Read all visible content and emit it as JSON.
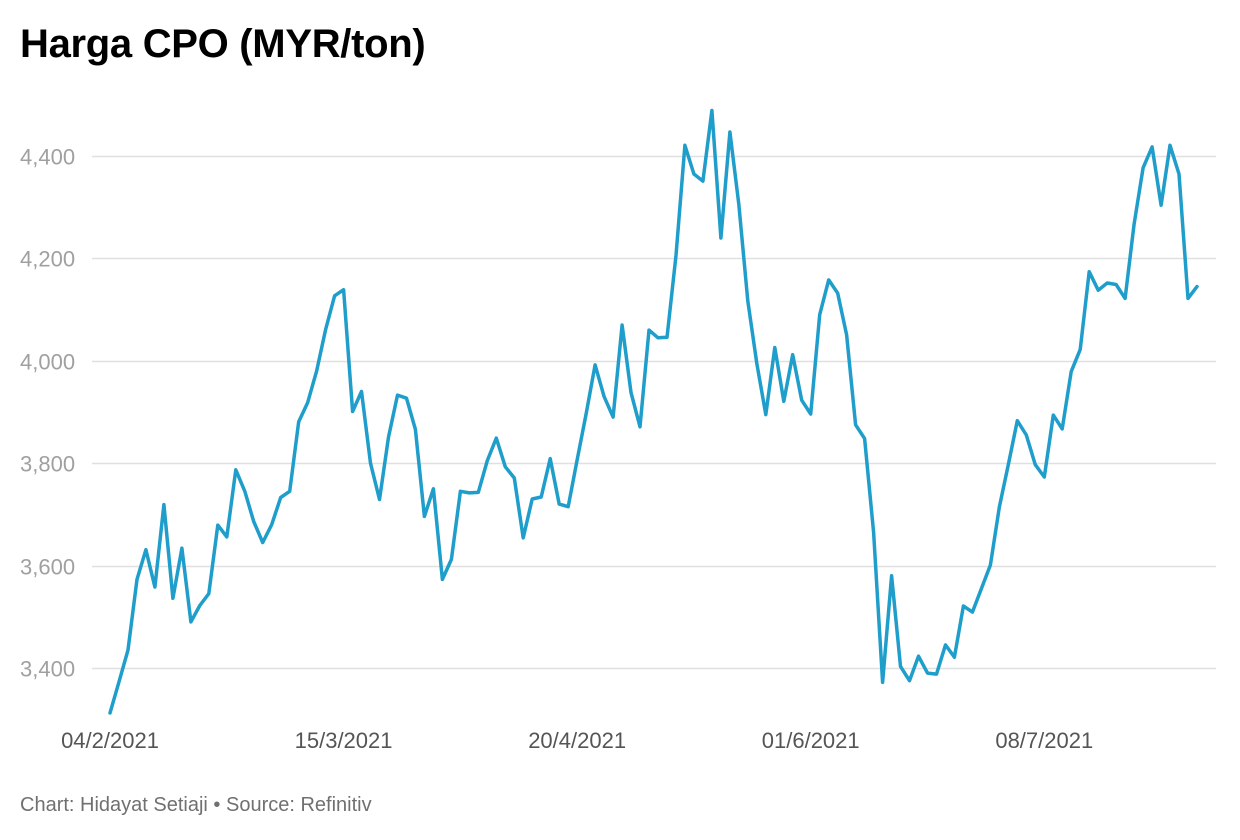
{
  "title": "Harga CPO (MYR/ton)",
  "footer": {
    "chart_by": "Chart: Hidayat Setiaji",
    "separator": " • ",
    "source": "Source: Refinitiv"
  },
  "colors": {
    "line": "#1f9ecb",
    "grid": "#e0e0e0",
    "tick_text": "#a0a0a0",
    "x_tick_text": "#555555"
  },
  "chart_data": {
    "type": "line",
    "title": "Harga CPO (MYR/ton)",
    "xlabel": "",
    "ylabel": "",
    "ylim": [
      3310,
      4490
    ],
    "y_ticks": [
      3400,
      3600,
      3800,
      4000,
      4200,
      4400
    ],
    "y_tick_labels": [
      "3,400",
      "3,600",
      "3,800",
      "4,000",
      "4,200",
      "4,400"
    ],
    "x_tick_labels": [
      {
        "label": "04/2/2021",
        "index": 0
      },
      {
        "label": "15/3/2021",
        "index": 26
      },
      {
        "label": "20/4/2021",
        "index": 52
      },
      {
        "label": "01/6/2021",
        "index": 78
      },
      {
        "label": "08/7/2021",
        "index": 104
      }
    ],
    "grid": true,
    "legend": "none",
    "series": [
      {
        "values": [
          3312,
          3373,
          3435,
          3573,
          3631,
          3558,
          3719,
          3536,
          3634,
          3490,
          3522,
          3545,
          3679,
          3656,
          3787,
          3745,
          3686,
          3645,
          3680,
          3733,
          3745,
          3881,
          3918,
          3980,
          4061,
          4127,
          4139,
          3901,
          3940,
          3800,
          3729,
          3851,
          3933,
          3927,
          3866,
          3696,
          3750,
          3573,
          3612,
          3745,
          3742,
          3743,
          3805,
          3849,
          3793,
          3771,
          3654,
          3730,
          3734,
          3809,
          3720,
          3715,
          3806,
          3896,
          3992,
          3930,
          3890,
          4070,
          3938,
          3871,
          4060,
          4045,
          4046,
          4206,
          4421,
          4365,
          4351,
          4489,
          4240,
          4447,
          4306,
          4117,
          3995,
          3895,
          4026,
          3921,
          4012,
          3923,
          3896,
          4090,
          4158,
          4132,
          4051,
          3875,
          3848,
          3665,
          3372,
          3580,
          3403,
          3375,
          3423,
          3390,
          3388,
          3445,
          3421,
          3521,
          3509,
          3555,
          3601,
          3715,
          3797,
          3883,
          3855,
          3797,
          3773,
          3894,
          3867,
          3979,
          4022,
          4174,
          4138,
          4152,
          4149,
          4122,
          4267,
          4377,
          4418,
          4304,
          4421,
          4365,
          4122,
          4145
        ]
      }
    ]
  }
}
